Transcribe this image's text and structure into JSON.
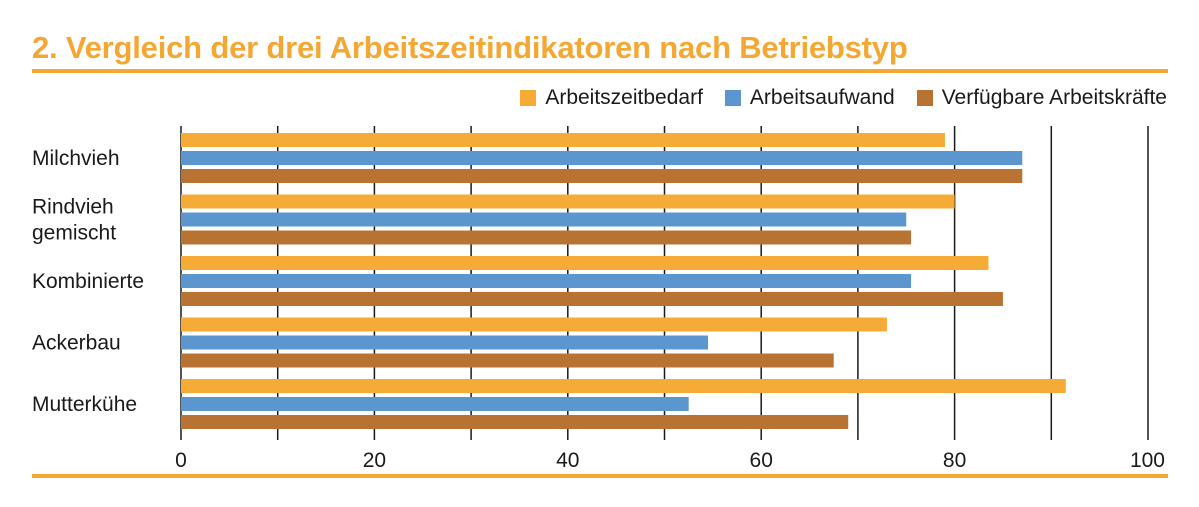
{
  "header": {
    "title": "2. Vergleich der drei Arbeitszeitindikatoren nach Betriebstyp"
  },
  "chart_data": {
    "type": "bar",
    "orientation": "horizontal",
    "title": "2. Vergleich der drei Arbeitszeitindikatoren nach Betriebstyp",
    "xlabel": "",
    "ylabel": "",
    "xlim": [
      0,
      100
    ],
    "x_ticks": [
      0,
      20,
      40,
      60,
      80,
      100
    ],
    "grid": true,
    "legend_position": "top-right",
    "categories": [
      [
        "Milchvieh"
      ],
      [
        "Rindvieh",
        "gemischt"
      ],
      [
        "Kombinierte"
      ],
      [
        "Ackerbau"
      ],
      [
        "Mutterkühe"
      ]
    ],
    "series": [
      {
        "name": "Arbeitszeitbedarf",
        "color": "#f5ab35",
        "values": [
          79,
          80,
          83.5,
          73,
          91.5
        ]
      },
      {
        "name": "Arbeitsaufwand",
        "color": "#5b96cf",
        "values": [
          87,
          75,
          75.5,
          54.5,
          52.5
        ]
      },
      {
        "name": "Verfügbare Arbeitskräfte",
        "color": "#b87333",
        "values": [
          87,
          75.5,
          85,
          67.5,
          69
        ]
      }
    ]
  }
}
